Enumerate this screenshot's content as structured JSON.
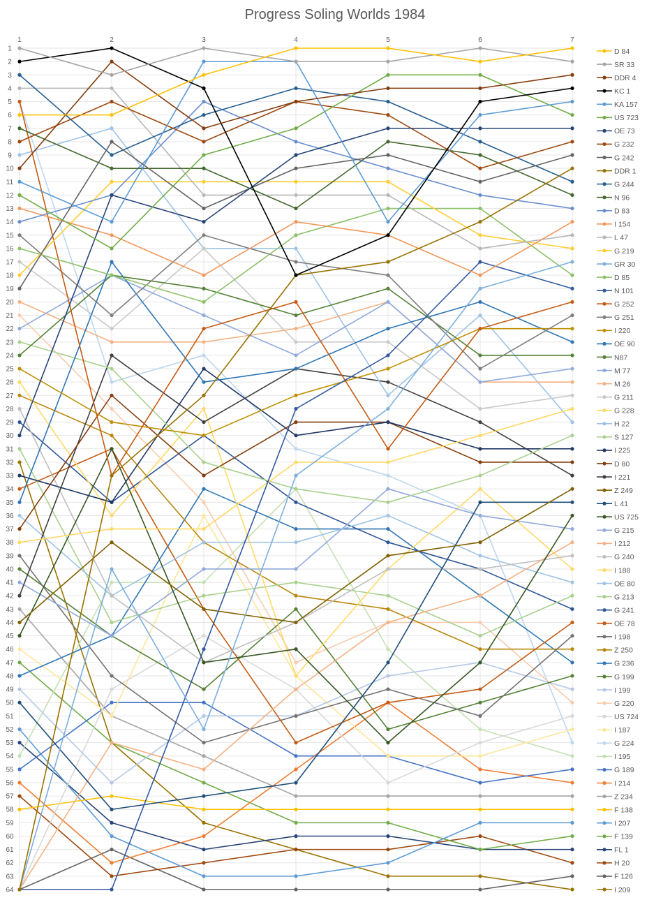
{
  "chart_data": {
    "type": "line",
    "title": "Progress Soling Worlds 1984",
    "xlabel": "",
    "ylabel": "",
    "categories": [
      "1",
      "2",
      "3",
      "4",
      "5",
      "6",
      "7"
    ],
    "y_axis": {
      "min": 1,
      "max": 64,
      "reversed": true,
      "tick_step": 1
    },
    "grid": true,
    "legend_position": "right",
    "series": [
      {
        "name": "D 84",
        "color": "#FFC000",
        "values": [
          6,
          6,
          3,
          1,
          1,
          2,
          1
        ]
      },
      {
        "name": "SR 33",
        "color": "#A5A5A5",
        "values": [
          1,
          3,
          1,
          2,
          2,
          1,
          2
        ]
      },
      {
        "name": "DDR 4",
        "color": "#843C0C",
        "values": [
          10,
          2,
          7,
          5,
          4,
          4,
          3
        ]
      },
      {
        "name": "KC 1",
        "color": "#000000",
        "values": [
          2,
          1,
          4,
          18,
          15,
          5,
          4
        ]
      },
      {
        "name": "KA 157",
        "color": "#5B9BD5",
        "values": [
          11,
          14,
          2,
          2,
          14,
          6,
          5
        ]
      },
      {
        "name": "US 723",
        "color": "#70AD47",
        "values": [
          12,
          16,
          9,
          7,
          3,
          3,
          6
        ]
      },
      {
        "name": "OE 73",
        "color": "#264478",
        "values": [
          30,
          12,
          14,
          9,
          7,
          7,
          7
        ]
      },
      {
        "name": "G 232",
        "color": "#9E480E",
        "values": [
          8,
          5,
          8,
          5,
          6,
          10,
          8
        ]
      },
      {
        "name": "G 242",
        "color": "#636363",
        "values": [
          19,
          8,
          13,
          10,
          9,
          11,
          9
        ]
      },
      {
        "name": "DDR 1",
        "color": "#997300",
        "values": [
          64,
          33,
          27,
          18,
          17,
          14,
          10
        ]
      },
      {
        "name": "G 244",
        "color": "#255E91",
        "values": [
          3,
          9,
          6,
          4,
          5,
          8,
          11
        ]
      },
      {
        "name": "N 96",
        "color": "#43682B",
        "values": [
          7,
          10,
          10,
          13,
          8,
          9,
          12
        ]
      },
      {
        "name": "D 83",
        "color": "#698ED0",
        "values": [
          14,
          12,
          5,
          8,
          10,
          12,
          13
        ]
      },
      {
        "name": "I 154",
        "color": "#F1975A",
        "values": [
          13,
          15,
          18,
          14,
          15,
          18,
          14
        ]
      },
      {
        "name": "L 47",
        "color": "#B7B7B7",
        "values": [
          4,
          4,
          12,
          12,
          12,
          16,
          15
        ]
      },
      {
        "name": "G 219",
        "color": "#FFCD33",
        "values": [
          18,
          11,
          11,
          11,
          11,
          15,
          16
        ]
      },
      {
        "name": "GR 30",
        "color": "#7CAFDD",
        "values": [
          64,
          40,
          52,
          33,
          28,
          19,
          17
        ]
      },
      {
        "name": "D 85",
        "color": "#8CC168",
        "values": [
          16,
          18,
          20,
          15,
          13,
          13,
          18
        ]
      },
      {
        "name": "N 101",
        "color": "#335AA1",
        "values": [
          64,
          64,
          46,
          28,
          24,
          17,
          19
        ]
      },
      {
        "name": "G 252",
        "color": "#C55A11",
        "values": [
          5,
          33,
          22,
          20,
          31,
          22,
          20
        ]
      },
      {
        "name": "G 251",
        "color": "#7F7F7F",
        "values": [
          15,
          21,
          15,
          17,
          18,
          25,
          21
        ]
      },
      {
        "name": "I 220",
        "color": "#BF9000",
        "values": [
          25,
          29,
          30,
          27,
          25,
          22,
          22
        ]
      },
      {
        "name": "OE 90",
        "color": "#2E75B6",
        "values": [
          35,
          17,
          26,
          25,
          22,
          20,
          23
        ]
      },
      {
        "name": "N87",
        "color": "#548235",
        "values": [
          24,
          18,
          19,
          21,
          19,
          24,
          24
        ]
      },
      {
        "name": "M 77",
        "color": "#8FAADC",
        "values": [
          22,
          18,
          21,
          24,
          20,
          26,
          25
        ]
      },
      {
        "name": "M 26",
        "color": "#F4B183",
        "values": [
          20,
          23,
          23,
          22,
          20,
          26,
          26
        ]
      },
      {
        "name": "G 211",
        "color": "#C9C9C9",
        "values": [
          17,
          22,
          16,
          23,
          23,
          28,
          27
        ]
      },
      {
        "name": "G 228",
        "color": "#FFD966",
        "values": [
          38,
          37,
          37,
          32,
          32,
          30,
          28
        ]
      },
      {
        "name": "H 22",
        "color": "#9DC3E6",
        "values": [
          9,
          7,
          16,
          16,
          27,
          21,
          29
        ]
      },
      {
        "name": "S 127",
        "color": "#A9D18E",
        "values": [
          23,
          25,
          32,
          34,
          35,
          33,
          30
        ]
      },
      {
        "name": "I 225",
        "color": "#203864",
        "values": [
          33,
          35,
          25,
          30,
          29,
          31,
          31
        ]
      },
      {
        "name": "D 80",
        "color": "#843C0C",
        "values": [
          37,
          27,
          33,
          29,
          29,
          32,
          32
        ]
      },
      {
        "name": "I 221",
        "color": "#404040",
        "values": [
          42,
          24,
          29,
          25,
          26,
          29,
          33
        ]
      },
      {
        "name": "Z 249",
        "color": "#7F6000",
        "values": [
          44,
          38,
          43,
          44,
          39,
          38,
          34
        ]
      },
      {
        "name": "L 41",
        "color": "#1F4E79",
        "values": [
          50,
          58,
          57,
          56,
          47,
          35,
          35
        ]
      },
      {
        "name": "US 725",
        "color": "#385723",
        "values": [
          45,
          31,
          47,
          46,
          53,
          47,
          36
        ]
      },
      {
        "name": "G 215",
        "color": "#8FAADC",
        "values": [
          41,
          45,
          40,
          40,
          34,
          36,
          37
        ]
      },
      {
        "name": "I 212",
        "color": "#F4B183",
        "values": [
          64,
          53,
          55,
          49,
          44,
          42,
          38
        ]
      },
      {
        "name": "G 240",
        "color": "#BFBFBF",
        "values": [
          28,
          42,
          47,
          44,
          40,
          40,
          39
        ]
      },
      {
        "name": "I 188",
        "color": "#FFD966",
        "values": [
          26,
          36,
          28,
          48,
          40,
          34,
          40
        ]
      },
      {
        "name": "OE 80",
        "color": "#9DC3E6",
        "values": [
          36,
          42,
          38,
          38,
          36,
          39,
          41
        ]
      },
      {
        "name": "G 213",
        "color": "#A9D18E",
        "values": [
          31,
          44,
          42,
          41,
          42,
          45,
          42
        ]
      },
      {
        "name": "G 241",
        "color": "#2F5597",
        "values": [
          29,
          35,
          30,
          35,
          38,
          40,
          43
        ]
      },
      {
        "name": "OE 78",
        "color": "#C55A11",
        "values": [
          34,
          31,
          43,
          53,
          50,
          49,
          44
        ]
      },
      {
        "name": "I 198",
        "color": "#767171",
        "values": [
          39,
          48,
          53,
          51,
          49,
          51,
          45
        ]
      },
      {
        "name": "Z 250",
        "color": "#B8860B",
        "values": [
          27,
          30,
          38,
          42,
          43,
          46,
          46
        ]
      },
      {
        "name": "G 236",
        "color": "#2E75B6",
        "values": [
          48,
          45,
          34,
          37,
          37,
          42,
          47
        ]
      },
      {
        "name": "G 199",
        "color": "#548235",
        "values": [
          40,
          45,
          49,
          43,
          52,
          50,
          48
        ]
      },
      {
        "name": "I 199",
        "color": "#B4C7E7",
        "values": [
          49,
          56,
          51,
          51,
          48,
          47,
          49
        ]
      },
      {
        "name": "G 220",
        "color": "#F8CBAD",
        "values": [
          21,
          28,
          35,
          47,
          44,
          44,
          50
        ]
      },
      {
        "name": "US 724",
        "color": "#D9D9D9",
        "values": [
          64,
          49,
          45,
          49,
          56,
          53,
          51
        ]
      },
      {
        "name": "I 187",
        "color": "#FFE699",
        "values": [
          46,
          51,
          36,
          48,
          54,
          54,
          52
        ]
      },
      {
        "name": "G 224",
        "color": "#BDD7EE",
        "values": [
          5,
          26,
          24,
          31,
          33,
          36,
          53
        ]
      },
      {
        "name": "I 195",
        "color": "#C5E0B4",
        "values": [
          54,
          41,
          41,
          34,
          46,
          52,
          54
        ]
      },
      {
        "name": "G 189",
        "color": "#4472C4",
        "values": [
          55,
          50,
          50,
          54,
          54,
          56,
          55
        ]
      },
      {
        "name": "I 214",
        "color": "#ED7D31",
        "values": [
          56,
          62,
          60,
          55,
          50,
          55,
          56
        ]
      },
      {
        "name": "Z 234",
        "color": "#A5A5A5",
        "values": [
          43,
          51,
          54,
          57,
          57,
          57,
          57
        ]
      },
      {
        "name": "F 138",
        "color": "#FFC000",
        "values": [
          58,
          57,
          58,
          58,
          58,
          58,
          58
        ]
      },
      {
        "name": "I 207",
        "color": "#5B9BD5",
        "values": [
          52,
          60,
          63,
          63,
          62,
          59,
          59
        ]
      },
      {
        "name": "F 139",
        "color": "#70AD47",
        "values": [
          47,
          53,
          56,
          59,
          59,
          61,
          60
        ]
      },
      {
        "name": "FL 1",
        "color": "#264478",
        "values": [
          53,
          59,
          61,
          60,
          60,
          61,
          61
        ]
      },
      {
        "name": "H 20",
        "color": "#9E480E",
        "values": [
          57,
          63,
          62,
          61,
          61,
          60,
          62
        ]
      },
      {
        "name": "F 126",
        "color": "#636363",
        "values": [
          64,
          61,
          64,
          64,
          64,
          64,
          63
        ]
      },
      {
        "name": "I 209",
        "color": "#997300",
        "values": [
          32,
          53,
          59,
          61,
          63,
          63,
          64
        ]
      }
    ]
  }
}
